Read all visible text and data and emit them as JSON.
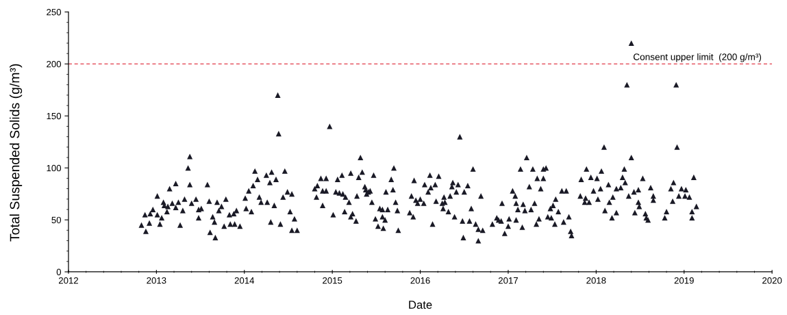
{
  "chart_data": {
    "type": "scatter",
    "xlabel": "Date",
    "ylabel": "Total Suspended Solids (g/m³)",
    "marker": "triangle",
    "series": [
      {
        "color": "#1a1a26",
        "x": [
          2014.39,
          2014.38,
          2013.38,
          2013.36,
          2013.22,
          2013.15,
          2013.38,
          2013.58,
          2013.01,
          2013.32,
          2013.45,
          2013.6,
          2013.79,
          2013.08,
          2013.18,
          2013.25,
          2013.13,
          2013.22,
          2013.3,
          2013.4,
          2013.48,
          2013.69,
          2013.74,
          2013.71,
          2012.96,
          2012.93,
          2012.87,
          2013.01,
          2013.06,
          2012.92,
          2013.04,
          2012.83,
          2012.88,
          2013.27,
          2013.48,
          2013.64,
          2013.66,
          2013.61,
          2013.67,
          2013.77,
          2013.83,
          2013.84,
          2013.91,
          2013.89,
          2013.95,
          2013.88,
          2014.02,
          2014.01,
          2014.05,
          2014.1,
          2014.12,
          2014.15,
          2014.25,
          2014.31,
          2014.29,
          2014.36,
          2014.46,
          2014.17,
          2014.19,
          2014.26,
          2014.34,
          2014.08,
          2014.44,
          2014.49,
          2014.54,
          2014.52,
          2014.57,
          2014.3,
          2014.41,
          2014.54,
          2014.6,
          2014.97,
          2016.45,
          2015.32,
          2015.7,
          2016.6,
          2014.87,
          2014.93,
          2014.83,
          2014.8,
          2014.82,
          2014.89,
          2015.11,
          2015.06,
          2015.21,
          2015.34,
          2015.3,
          2015.47,
          2014.93,
          2015.04,
          2015.12,
          2015.15,
          2015.19,
          2015.28,
          2015.37,
          2015.39,
          2015.43,
          2015.01,
          2015.14,
          2015.23,
          2015.21,
          2015.27,
          2015.45,
          2015.54,
          2015.63,
          2015.61,
          2015.67,
          2015.69,
          2015.72,
          2015.74,
          2015.49,
          2015.57,
          2015.6,
          2015.52,
          2015.58,
          2015.75,
          2015.88,
          2015.92,
          2015.9,
          2015.93,
          2015.95,
          2016.0,
          2016.04,
          2016.05,
          2016.11,
          2016.12,
          2016.17,
          2016.09,
          2016.21,
          2016.14,
          2016.18,
          2016.27,
          2016.28,
          2016.34,
          2016.26,
          2016.32,
          2016.37,
          2016.43,
          2016.41,
          2016.5,
          2016.54,
          2016.39,
          2016.48,
          2016.56,
          2016.58,
          2016.69,
          2016.63,
          2016.66,
          2016.71,
          2016.49,
          2016.66,
          2016.82,
          2016.87,
          2016.93,
          2016.92,
          2016.96,
          2018.09,
          2018.92,
          2017.21,
          2018.4,
          2017.14,
          2017.28,
          2017.4,
          2017.43,
          2017.33,
          2017.4,
          2017.24,
          2017.37,
          2017.05,
          2017.08,
          2017.61,
          2017.66,
          2017.09,
          2017.17,
          2017.3,
          2017.11,
          2017.19,
          2017.26,
          2017.54,
          2017.51,
          2017.48,
          2017.57,
          2017.45,
          2017.49,
          2017.35,
          2017.32,
          2017.53,
          2017.63,
          2017.69,
          2017.01,
          2017.09,
          2017.0,
          2017.16,
          2017.71,
          2017.72,
          2017.89,
          2018.06,
          2018.32,
          2017.83,
          2017.94,
          2018.01,
          2018.3,
          2018.33,
          2018.53,
          2018.14,
          2018.23,
          2018.28,
          2018.05,
          2017.97,
          2017.82,
          2017.88,
          2017.87,
          2017.92,
          2018.02,
          2018.15,
          2018.19,
          2018.37,
          2018.43,
          2018.48,
          2018.62,
          2018.65,
          2018.65,
          2018.48,
          2018.49,
          2018.1,
          2018.23,
          2018.18,
          2018.44,
          2018.56,
          2018.57,
          2018.59,
          2018.8,
          2018.78,
          2018.85,
          2018.88,
          2018.87,
          2018.91,
          2019.11,
          2018.97,
          2019.02,
          2019.01,
          2019.06,
          2018.94,
          2019.14,
          2019.09,
          2019.09,
          2018.4,
          2018.35,
          2013.09,
          2013.12,
          2013.51,
          2014.89,
          2015.08,
          2015.38,
          2015.41,
          2015.57,
          2015.97,
          2016.36,
          2016.25,
          2016.89
        ],
        "values": [
          133,
          170,
          111,
          100,
          85,
          80,
          84,
          84,
          73,
          70,
          70,
          68,
          70,
          67,
          66,
          67,
          63,
          62,
          59,
          66,
          60,
          67,
          63,
          59,
          60,
          56,
          55,
          55,
          52,
          47,
          46,
          45,
          39,
          45,
          52,
          53,
          48,
          38,
          33,
          44,
          55,
          46,
          59,
          46,
          44,
          56,
          61,
          71,
          78,
          83,
          97,
          89,
          93,
          96,
          86,
          89,
          97,
          72,
          67,
          67,
          64,
          58,
          72,
          77,
          75,
          58,
          51,
          48,
          46,
          40,
          40,
          140,
          130,
          110,
          100,
          99,
          90,
          90,
          83,
          80,
          72,
          64,
          93,
          89,
          95,
          96,
          91,
          93,
          78,
          77,
          75,
          72,
          67,
          73,
          82,
          75,
          78,
          55,
          58,
          56,
          53,
          49,
          67,
          61,
          60,
          77,
          89,
          79,
          67,
          59,
          51,
          53,
          50,
          44,
          42,
          40,
          57,
          53,
          73,
          88,
          69,
          70,
          66,
          84,
          93,
          81,
          84,
          77,
          92,
          46,
          68,
          72,
          67,
          73,
          61,
          58,
          86,
          84,
          77,
          77,
          83,
          53,
          49,
          49,
          61,
          73,
          46,
          41,
          40,
          33,
          30,
          46,
          52,
          66,
          49,
          37,
          120,
          120,
          110,
          110,
          99,
          99,
          99,
          100,
          90,
          90,
          82,
          80,
          78,
          73,
          78,
          78,
          66,
          65,
          66,
          60,
          59,
          60,
          70,
          64,
          61,
          58,
          53,
          52,
          51,
          46,
          46,
          48,
          53,
          51,
          50,
          44,
          43,
          39,
          35,
          99,
          97,
          99,
          89,
          91,
          90,
          91,
          86,
          90,
          84,
          80,
          81,
          80,
          78,
          73,
          71,
          67,
          67,
          70,
          67,
          72,
          73,
          77,
          79,
          81,
          73,
          69,
          67,
          63,
          59,
          57,
          52,
          57,
          56,
          52,
          50,
          58,
          52,
          80,
          86,
          68,
          180,
          91,
          80,
          79,
          73,
          72,
          73,
          63,
          58,
          52,
          220,
          180,
          64,
          58,
          61,
          78,
          76,
          79,
          77,
          60,
          66,
          82,
          66,
          50
        ]
      }
    ],
    "xlim": [
      2012,
      2020
    ],
    "xticks": [
      2012,
      {
        "value": 2012.2,
        "label": null
      },
      {
        "value": 2012.4,
        "label": null
      },
      {
        "value": 2012.6,
        "label": null
      },
      {
        "value": 2012.8,
        "label": null
      },
      2013,
      {
        "value": 2013.2,
        "label": null
      },
      {
        "value": 2013.4,
        "label": null
      },
      {
        "value": 2013.6,
        "label": null
      },
      {
        "value": 2013.8,
        "label": null
      },
      2014,
      {
        "value": 2014.2,
        "label": null
      },
      {
        "value": 2014.4,
        "label": null
      },
      {
        "value": 2014.6,
        "label": null
      },
      {
        "value": 2014.8,
        "label": null
      },
      2015,
      {
        "value": 2015.2,
        "label": null
      },
      {
        "value": 2015.4,
        "label": null
      },
      {
        "value": 2015.6,
        "label": null
      },
      {
        "value": 2015.8,
        "label": null
      },
      2016,
      {
        "value": 2016.2,
        "label": null
      },
      {
        "value": 2016.4,
        "label": null
      },
      {
        "value": 2016.6,
        "label": null
      },
      {
        "value": 2016.8,
        "label": null
      },
      2017,
      {
        "value": 2017.2,
        "label": null
      },
      {
        "value": 2017.4,
        "label": null
      },
      {
        "value": 2017.6,
        "label": null
      },
      {
        "value": 2017.8,
        "label": null
      },
      2018,
      {
        "value": 2018.2,
        "label": null
      },
      {
        "value": 2018.4,
        "label": null
      },
      {
        "value": 2018.6,
        "label": null
      },
      {
        "value": 2018.8,
        "label": null
      },
      2019,
      {
        "value": 2019.2,
        "label": null
      },
      {
        "value": 2019.4,
        "label": null
      },
      {
        "value": 2019.6,
        "label": null
      },
      {
        "value": 2019.8,
        "label": null
      },
      2020
    ],
    "ylim": [
      0,
      250
    ],
    "yticks": [
      0,
      {
        "value": 10,
        "label": null
      },
      {
        "value": 20,
        "label": null
      },
      {
        "value": 30,
        "label": null
      },
      {
        "value": 40,
        "label": null
      },
      50,
      {
        "value": 60,
        "label": null
      },
      {
        "value": 70,
        "label": null
      },
      {
        "value": 80,
        "label": null
      },
      {
        "value": 90,
        "label": null
      },
      100,
      {
        "value": 110,
        "label": null
      },
      {
        "value": 120,
        "label": null
      },
      {
        "value": 130,
        "label": null
      },
      {
        "value": 140,
        "label": null
      },
      150,
      {
        "value": 160,
        "label": null
      },
      {
        "value": 170,
        "label": null
      },
      {
        "value": 180,
        "label": null
      },
      {
        "value": 190,
        "label": null
      },
      200,
      {
        "value": 210,
        "label": null
      },
      {
        "value": 220,
        "label": null
      },
      {
        "value": 230,
        "label": null
      },
      {
        "value": 240,
        "label": null
      },
      250
    ],
    "ref_lines": [
      {
        "axis": "y",
        "value": 200,
        "label": "Consent upper limit  (200 g/m³)",
        "color": "#e03a48",
        "line_style": "dashed"
      }
    ]
  }
}
